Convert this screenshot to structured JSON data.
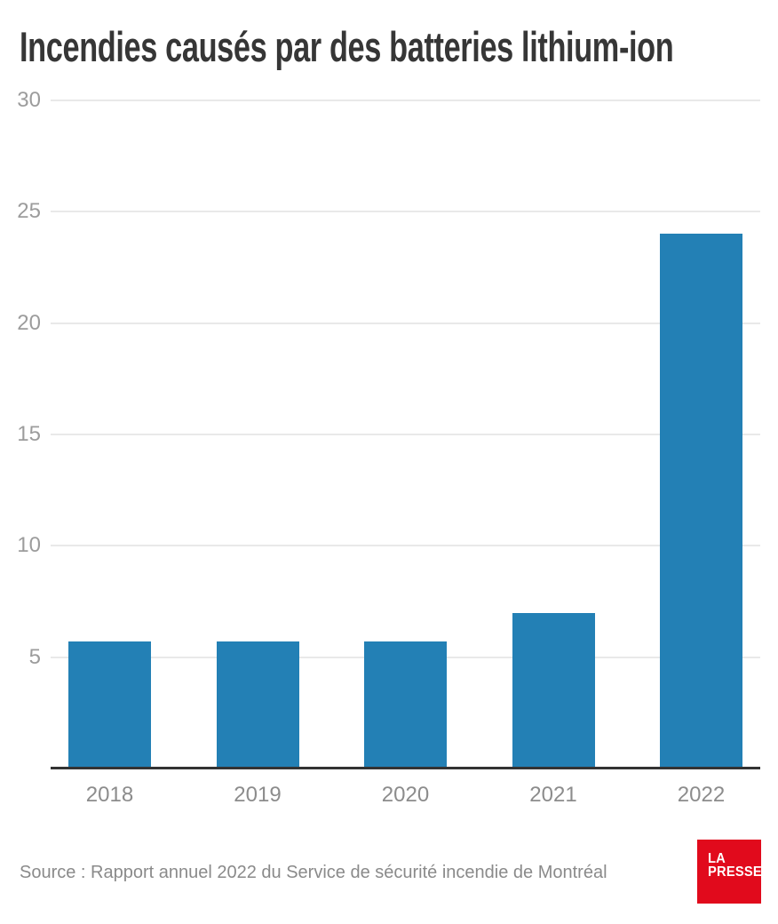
{
  "title": "Incendies causés par des batteries lithium-ion",
  "source": {
    "text": "Source : Rapport annuel 2022 du Service de sécurité incendie de Montréal"
  },
  "logo": {
    "line1": "LA",
    "line2": "PRESSE"
  },
  "colors": {
    "background": "#ffffff",
    "bar": "#2380b5",
    "gridline": "#e9e9e9",
    "axis_line": "#333333",
    "y_tick_label": "#9c9c9c",
    "x_tick_label": "#8c8c8c",
    "title": "#363636",
    "source": "#8a8a8a",
    "logo_bg": "#e10a1c",
    "logo_text": "#ffffff"
  },
  "chart_data": {
    "type": "bar",
    "categories": [
      "2018",
      "2019",
      "2020",
      "2021",
      "2022"
    ],
    "values": [
      5.7,
      5.7,
      5.7,
      7,
      24
    ],
    "title": "Incendies causés par des batteries lithium-ion",
    "xlabel": "",
    "ylabel": "",
    "ylim": [
      0,
      30
    ],
    "yticks": [
      5,
      10,
      15,
      20,
      25,
      30
    ],
    "grid": true,
    "legend": false,
    "bar_color": "#2380b5"
  }
}
